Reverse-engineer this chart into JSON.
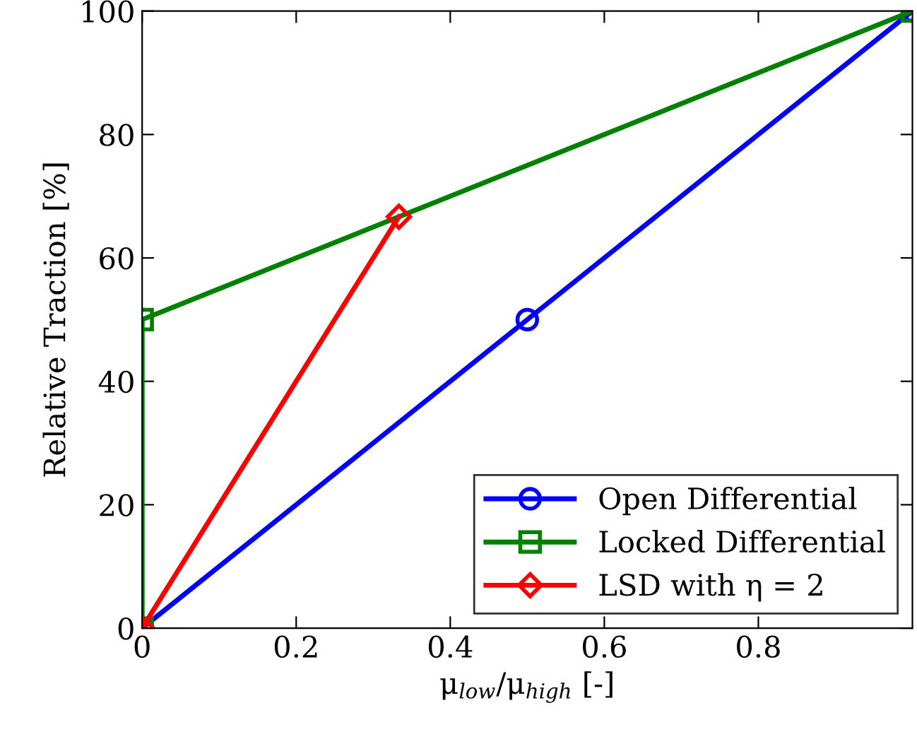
{
  "chart_data": {
    "type": "line",
    "xlabel": "μ$_{low}$/μ$_{high}$ [-]",
    "ylabel": "Relative Traction [%]",
    "series": [
      {
        "name": "Open Differential",
        "color": "#0000ff",
        "x": [
          0,
          0.5,
          1
        ],
        "values": [
          0,
          50,
          100
        ],
        "marker": "circle"
      },
      {
        "name": "Locked Differential",
        "color": "#008000",
        "x": [
          0,
          0,
          1
        ],
        "values": [
          0,
          50,
          100
        ],
        "marker": "square"
      },
      {
        "name": "LSD with η = 2",
        "color": "#ff0000",
        "x": [
          0,
          0.3333
        ],
        "values": [
          0,
          66.67
        ],
        "marker": "diamond"
      }
    ],
    "xlim": [
      0,
      1
    ],
    "xticks": [
      0,
      0.2,
      0.4,
      0.6,
      0.8
    ],
    "ylim": [
      0,
      100
    ],
    "yticks": [
      0,
      20,
      40,
      60,
      80,
      100
    ],
    "grid": false,
    "legend": "bottom right",
    "line_style": "solid"
  }
}
